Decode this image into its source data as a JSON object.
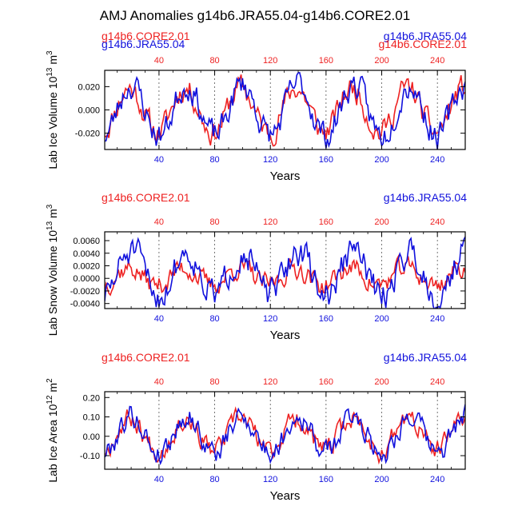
{
  "title": "AMJ Anomalies g14b6.JRA55.04-g14b6.CORE2.01",
  "colors": {
    "core": "#ee2222",
    "jra": "#1111dd",
    "axis": "#000000",
    "grid": "#555555"
  },
  "chart_data": [
    {
      "type": "line",
      "top_left_labels": [
        "g14b6.CORE2.01",
        "g14b6.JRA55.04"
      ],
      "top_right_labels": [
        "g14b6.JRA55.04",
        "g14b6.CORE2.01"
      ],
      "ylabel": "Lab Ice Volume 10",
      "ylabel_exp": "13",
      "ylabel_unit": " m",
      "ylabel_unit_exp": "3",
      "xlabel": "Years",
      "xlim": [
        1,
        260
      ],
      "ylim": [
        -0.034,
        0.034
      ],
      "yticks": [
        -0.02,
        0.0,
        0.02
      ],
      "ytick_labels": [
        "-0.020",
        "0.000",
        "0.020"
      ],
      "xticks": [
        40,
        80,
        120,
        160,
        200,
        240
      ],
      "xtick_labels": [
        "40",
        "80",
        "120",
        "160",
        "200",
        "240"
      ],
      "grid_x": true,
      "series": [
        {
          "name": "g14b6.CORE2.01",
          "color": "#ee2222",
          "amplitude": 0.019,
          "noise": 0.009,
          "phase": 0.2,
          "seed": 11
        },
        {
          "name": "g14b6.JRA55.04",
          "color": "#1111dd",
          "amplitude": 0.022,
          "noise": 0.01,
          "phase": 0.0,
          "seed": 23
        }
      ]
    },
    {
      "type": "line",
      "top_left_labels": [
        "g14b6.CORE2.01"
      ],
      "top_right_labels": [
        "g14b6.JRA55.04"
      ],
      "ylabel": "Lab Snow Volume 10",
      "ylabel_exp": "13",
      "ylabel_unit": " m",
      "ylabel_unit_exp": "3",
      "xlabel": "Years",
      "xlim": [
        1,
        260
      ],
      "ylim": [
        -0.0048,
        0.0074
      ],
      "yticks": [
        -0.004,
        -0.002,
        0.0,
        0.002,
        0.004,
        0.006
      ],
      "ytick_labels": [
        "-0.0040",
        "-0.0020",
        "0.0000",
        "0.0020",
        "0.0040",
        "0.0060"
      ],
      "xticks": [
        40,
        80,
        120,
        160,
        200,
        240
      ],
      "xtick_labels": [
        "40",
        "80",
        "120",
        "160",
        "200",
        "240"
      ],
      "grid_x": true,
      "series": [
        {
          "name": "g14b6.CORE2.01",
          "color": "#ee2222",
          "amplitude": 0.0014,
          "noise": 0.0014,
          "phase": 0.3,
          "seed": 37,
          "offset": 0.0003
        },
        {
          "name": "g14b6.JRA55.04",
          "color": "#1111dd",
          "amplitude": 0.0035,
          "noise": 0.002,
          "phase": 0.0,
          "seed": 51,
          "offset": 0.0008
        }
      ]
    },
    {
      "type": "line",
      "top_left_labels": [
        "g14b6.CORE2.01"
      ],
      "top_right_labels": [
        "g14b6.JRA55.04"
      ],
      "ylabel": "Lab Ice Area 10",
      "ylabel_exp": "12",
      "ylabel_unit": " m",
      "ylabel_unit_exp": "2",
      "xlabel": "Years",
      "xlim": [
        1,
        260
      ],
      "ylim": [
        -0.17,
        0.23
      ],
      "yticks": [
        -0.1,
        0.0,
        0.1,
        0.2
      ],
      "ytick_labels": [
        "-0.10",
        "0.00",
        "0.10",
        "0.20"
      ],
      "xticks": [
        40,
        80,
        120,
        160,
        200,
        240
      ],
      "xtick_labels": [
        "40",
        "80",
        "120",
        "160",
        "200",
        "240"
      ],
      "grid_x": true,
      "series": [
        {
          "name": "g14b6.CORE2.01",
          "color": "#ee2222",
          "amplitude": 0.085,
          "noise": 0.045,
          "phase": 0.15,
          "seed": 67,
          "offset": 0.01
        },
        {
          "name": "g14b6.JRA55.04",
          "color": "#1111dd",
          "amplitude": 0.095,
          "noise": 0.05,
          "phase": 0.0,
          "seed": 79,
          "offset": 0.01
        }
      ]
    }
  ]
}
